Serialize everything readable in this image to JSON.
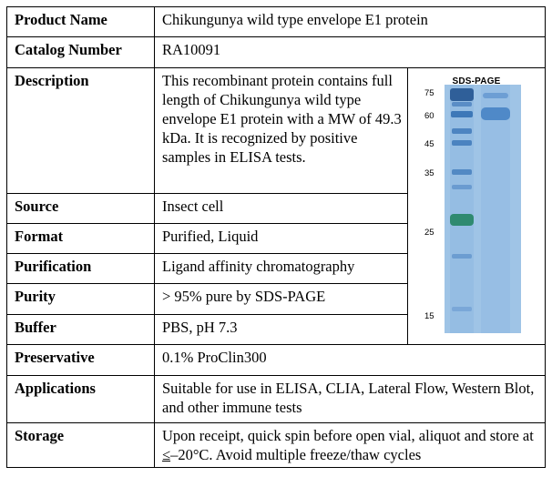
{
  "rows": {
    "product_name": {
      "label": "Product Name",
      "value": "Chikungunya wild type envelope E1 protein"
    },
    "catalog_number": {
      "label": "Catalog Number",
      "value": "RA10091"
    },
    "description": {
      "label": "Description",
      "value": "This recombinant protein contains full length of Chikungunya wild type envelope E1 protein with a MW of 49.3 kDa. It is recognized by positive samples in ELISA tests."
    },
    "source": {
      "label": "Source",
      "value": "Insect cell"
    },
    "format": {
      "label": "Format",
      "value": "Purified, Liquid"
    },
    "purification": {
      "label": "Purification",
      "value": "Ligand affinity chromatography"
    },
    "purity": {
      "label": "Purity",
      "value": "> 95% pure by SDS-PAGE"
    },
    "buffer": {
      "label": "Buffer",
      "value": "PBS, pH 7.3"
    },
    "preservative": {
      "label": "Preservative",
      "value": "0.1% ProClin300"
    },
    "applications": {
      "label": "Applications",
      "value": "Suitable for use in ELISA, CLIA, Lateral Flow, Western Blot, and other immune tests"
    },
    "storage": {
      "label": "Storage",
      "value_before": "Upon receipt, quick spin before open vial, aliquot and store at ",
      "value_underlined": "≤",
      "value_after": "–20°C. Avoid multiple freeze/thaw cycles"
    }
  },
  "gel": {
    "title": "SDS-PAGE",
    "marker_labels": [
      "75",
      "60",
      "45",
      "35",
      "25",
      "15"
    ],
    "colors": {
      "background": "#9fc4e6",
      "ladder": "#3d78b8",
      "sample": "#4f89c8",
      "green_band": "#2f8a70"
    }
  }
}
